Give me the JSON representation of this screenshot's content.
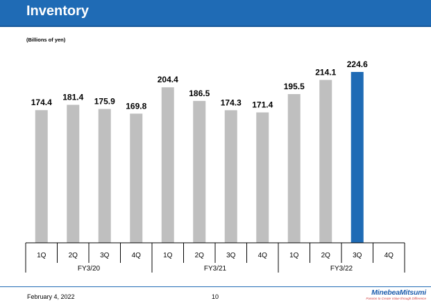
{
  "header": {
    "title": "Inventory"
  },
  "unit_note": "(Billions of yen)",
  "footer": {
    "date": "February 4, 2022",
    "page": "10",
    "logo_name": "MinebeaMitsumi",
    "logo_tagline": "Passion to Create Value through Difference"
  },
  "colors": {
    "header": "#1f6bb5",
    "bar_default": "#bfbfbf",
    "bar_highlight": "#1f6bb5"
  },
  "chart_data": {
    "type": "bar",
    "title": "",
    "xlabel": "",
    "ylabel": "",
    "ylim": [
      0,
      224.6
    ],
    "grid": false,
    "categories": [
      "1Q",
      "2Q",
      "3Q",
      "4Q",
      "1Q",
      "2Q",
      "3Q",
      "4Q",
      "1Q",
      "2Q",
      "3Q",
      "4Q"
    ],
    "groups": [
      {
        "label": "FY3/20",
        "start": 0,
        "end": 3
      },
      {
        "label": "FY3/21",
        "start": 4,
        "end": 7
      },
      {
        "label": "FY3/22",
        "start": 8,
        "end": 11
      }
    ],
    "values": [
      174.4,
      181.4,
      175.9,
      169.8,
      204.4,
      186.5,
      174.3,
      171.4,
      195.5,
      214.1,
      224.6,
      null
    ],
    "data_labels": [
      "174.4",
      "181.4",
      "175.9",
      "169.8",
      "204.4",
      "186.5",
      "174.3",
      "171.4",
      "195.5",
      "214.1",
      "224.6",
      ""
    ],
    "highlight_index": 10
  }
}
